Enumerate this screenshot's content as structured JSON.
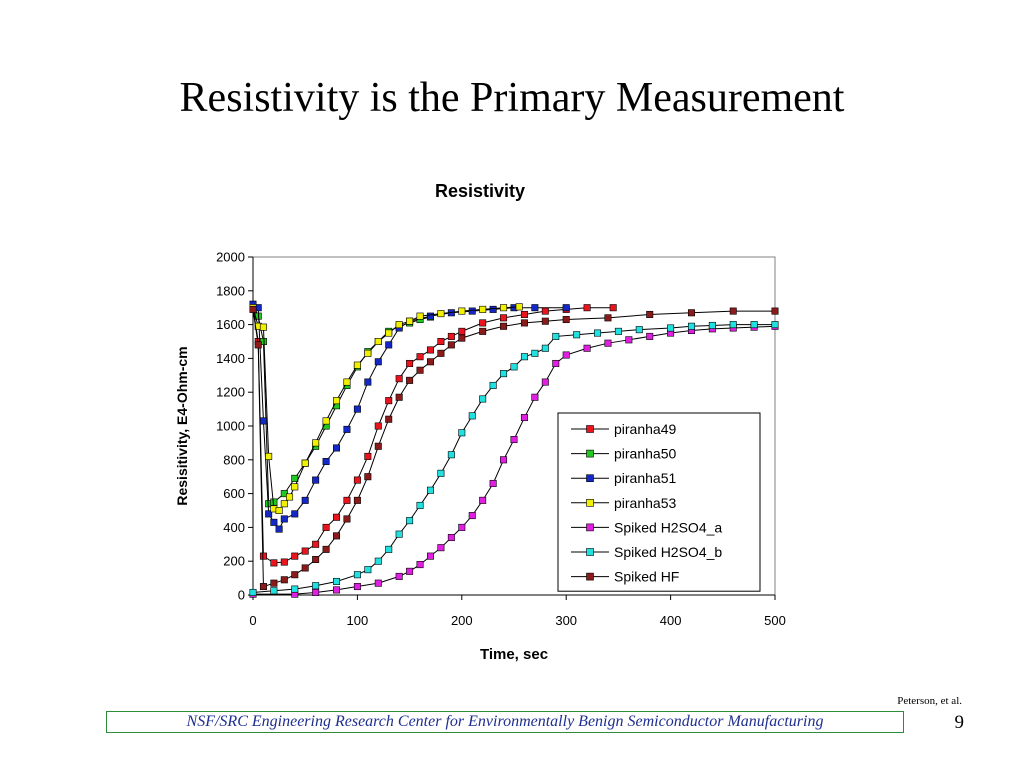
{
  "slide": {
    "title": "Resistivity is the Primary Measurement",
    "citation": "Peterson, et al.",
    "footer": "NSF/SRC Engineering Research Center for Environmentally Benign Semiconductor Manufacturing",
    "page_number": "9"
  },
  "chart_data": {
    "type": "line",
    "title": "Resistivity",
    "xlabel": "Time, sec",
    "ylabel": "Resisitivity, E4-Ohm-cm",
    "xlim": [
      0,
      500
    ],
    "ylim": [
      0,
      2000
    ],
    "xticks": [
      0,
      100,
      200,
      300,
      400,
      500
    ],
    "yticks": [
      0,
      200,
      400,
      600,
      800,
      1000,
      1200,
      1400,
      1600,
      1800,
      2000
    ],
    "grid": false,
    "legend_position": "bottom-right",
    "series": [
      {
        "name": "piranha49",
        "color": "#e8141e",
        "marker": "square",
        "points": [
          [
            0,
            1700
          ],
          [
            5,
            1500
          ],
          [
            10,
            230
          ],
          [
            20,
            190
          ],
          [
            30,
            195
          ],
          [
            40,
            230
          ],
          [
            50,
            260
          ],
          [
            60,
            300
          ],
          [
            70,
            400
          ],
          [
            80,
            460
          ],
          [
            90,
            560
          ],
          [
            100,
            680
          ],
          [
            110,
            820
          ],
          [
            120,
            1000
          ],
          [
            130,
            1150
          ],
          [
            140,
            1280
          ],
          [
            150,
            1370
          ],
          [
            160,
            1410
          ],
          [
            170,
            1450
          ],
          [
            180,
            1500
          ],
          [
            190,
            1530
          ],
          [
            200,
            1560
          ],
          [
            220,
            1610
          ],
          [
            240,
            1640
          ],
          [
            260,
            1660
          ],
          [
            280,
            1680
          ],
          [
            300,
            1690
          ],
          [
            320,
            1700
          ],
          [
            345,
            1700
          ]
        ]
      },
      {
        "name": "piranha50",
        "color": "#22c822",
        "marker": "square",
        "points": [
          [
            0,
            1720
          ],
          [
            5,
            1650
          ],
          [
            10,
            1500
          ],
          [
            15,
            540
          ],
          [
            20,
            550
          ],
          [
            30,
            600
          ],
          [
            40,
            690
          ],
          [
            50,
            780
          ],
          [
            60,
            880
          ],
          [
            70,
            1000
          ],
          [
            80,
            1120
          ],
          [
            90,
            1240
          ],
          [
            100,
            1350
          ],
          [
            110,
            1440
          ],
          [
            120,
            1500
          ],
          [
            130,
            1560
          ],
          [
            140,
            1590
          ],
          [
            150,
            1610
          ],
          [
            160,
            1630
          ],
          [
            170,
            1645
          ]
        ]
      },
      {
        "name": "piranha51",
        "color": "#1428c8",
        "marker": "square",
        "points": [
          [
            0,
            1720
          ],
          [
            5,
            1700
          ],
          [
            10,
            1030
          ],
          [
            15,
            480
          ],
          [
            20,
            430
          ],
          [
            25,
            390
          ],
          [
            30,
            450
          ],
          [
            40,
            480
          ],
          [
            50,
            560
          ],
          [
            60,
            680
          ],
          [
            70,
            790
          ],
          [
            80,
            870
          ],
          [
            90,
            980
          ],
          [
            100,
            1100
          ],
          [
            110,
            1260
          ],
          [
            120,
            1380
          ],
          [
            130,
            1480
          ],
          [
            140,
            1580
          ],
          [
            150,
            1620
          ],
          [
            170,
            1650
          ],
          [
            190,
            1670
          ],
          [
            210,
            1680
          ],
          [
            230,
            1690
          ],
          [
            250,
            1700
          ],
          [
            270,
            1700
          ],
          [
            300,
            1700
          ]
        ]
      },
      {
        "name": "piranha53",
        "color": "#f0f000",
        "marker": "square",
        "points": [
          [
            0,
            1700
          ],
          [
            5,
            1590
          ],
          [
            10,
            1585
          ],
          [
            15,
            820
          ],
          [
            20,
            510
          ],
          [
            25,
            500
          ],
          [
            30,
            540
          ],
          [
            35,
            580
          ],
          [
            40,
            640
          ],
          [
            50,
            780
          ],
          [
            60,
            900
          ],
          [
            70,
            1030
          ],
          [
            80,
            1150
          ],
          [
            90,
            1260
          ],
          [
            100,
            1360
          ],
          [
            110,
            1430
          ],
          [
            120,
            1500
          ],
          [
            130,
            1550
          ],
          [
            140,
            1600
          ],
          [
            150,
            1620
          ],
          [
            160,
            1650
          ],
          [
            180,
            1665
          ],
          [
            200,
            1680
          ],
          [
            220,
            1690
          ],
          [
            240,
            1700
          ],
          [
            255,
            1705
          ]
        ]
      },
      {
        "name": "Spiked H2SO4_a",
        "color": "#e020e0",
        "marker": "square",
        "points": [
          [
            0,
            5
          ],
          [
            40,
            5
          ],
          [
            60,
            15
          ],
          [
            80,
            30
          ],
          [
            100,
            50
          ],
          [
            120,
            70
          ],
          [
            140,
            110
          ],
          [
            150,
            140
          ],
          [
            160,
            180
          ],
          [
            170,
            230
          ],
          [
            180,
            280
          ],
          [
            190,
            340
          ],
          [
            200,
            400
          ],
          [
            210,
            470
          ],
          [
            220,
            560
          ],
          [
            230,
            660
          ],
          [
            240,
            800
          ],
          [
            250,
            920
          ],
          [
            260,
            1050
          ],
          [
            270,
            1170
          ],
          [
            280,
            1260
          ],
          [
            290,
            1370
          ],
          [
            300,
            1420
          ],
          [
            320,
            1460
          ],
          [
            340,
            1490
          ],
          [
            360,
            1510
          ],
          [
            380,
            1530
          ],
          [
            400,
            1550
          ],
          [
            420,
            1565
          ],
          [
            440,
            1575
          ],
          [
            460,
            1580
          ],
          [
            480,
            1585
          ],
          [
            500,
            1590
          ]
        ]
      },
      {
        "name": "Spiked H2SO4_b",
        "color": "#20e0e0",
        "marker": "square",
        "points": [
          [
            0,
            15
          ],
          [
            20,
            25
          ],
          [
            40,
            35
          ],
          [
            60,
            55
          ],
          [
            80,
            80
          ],
          [
            100,
            120
          ],
          [
            110,
            150
          ],
          [
            120,
            200
          ],
          [
            130,
            270
          ],
          [
            140,
            360
          ],
          [
            150,
            440
          ],
          [
            160,
            530
          ],
          [
            170,
            620
          ],
          [
            180,
            720
          ],
          [
            190,
            830
          ],
          [
            200,
            960
          ],
          [
            210,
            1060
          ],
          [
            220,
            1160
          ],
          [
            230,
            1240
          ],
          [
            240,
            1310
          ],
          [
            250,
            1350
          ],
          [
            260,
            1410
          ],
          [
            270,
            1430
          ],
          [
            280,
            1460
          ],
          [
            290,
            1530
          ],
          [
            310,
            1540
          ],
          [
            330,
            1550
          ],
          [
            350,
            1560
          ],
          [
            370,
            1570
          ],
          [
            400,
            1580
          ],
          [
            420,
            1590
          ],
          [
            440,
            1595
          ],
          [
            460,
            1600
          ],
          [
            480,
            1600
          ],
          [
            500,
            1600
          ]
        ]
      },
      {
        "name": "Spiked HF",
        "color": "#8b1a1a",
        "marker": "square",
        "points": [
          [
            0,
            1690
          ],
          [
            5,
            1480
          ],
          [
            10,
            50
          ],
          [
            20,
            70
          ],
          [
            30,
            90
          ],
          [
            40,
            120
          ],
          [
            50,
            160
          ],
          [
            60,
            210
          ],
          [
            70,
            270
          ],
          [
            80,
            350
          ],
          [
            90,
            450
          ],
          [
            100,
            560
          ],
          [
            110,
            700
          ],
          [
            120,
            880
          ],
          [
            130,
            1040
          ],
          [
            140,
            1170
          ],
          [
            150,
            1270
          ],
          [
            160,
            1330
          ],
          [
            170,
            1380
          ],
          [
            180,
            1430
          ],
          [
            190,
            1480
          ],
          [
            200,
            1520
          ],
          [
            220,
            1560
          ],
          [
            240,
            1590
          ],
          [
            260,
            1610
          ],
          [
            280,
            1620
          ],
          [
            300,
            1630
          ],
          [
            340,
            1640
          ],
          [
            380,
            1660
          ],
          [
            420,
            1670
          ],
          [
            460,
            1680
          ],
          [
            500,
            1680
          ]
        ]
      }
    ]
  }
}
